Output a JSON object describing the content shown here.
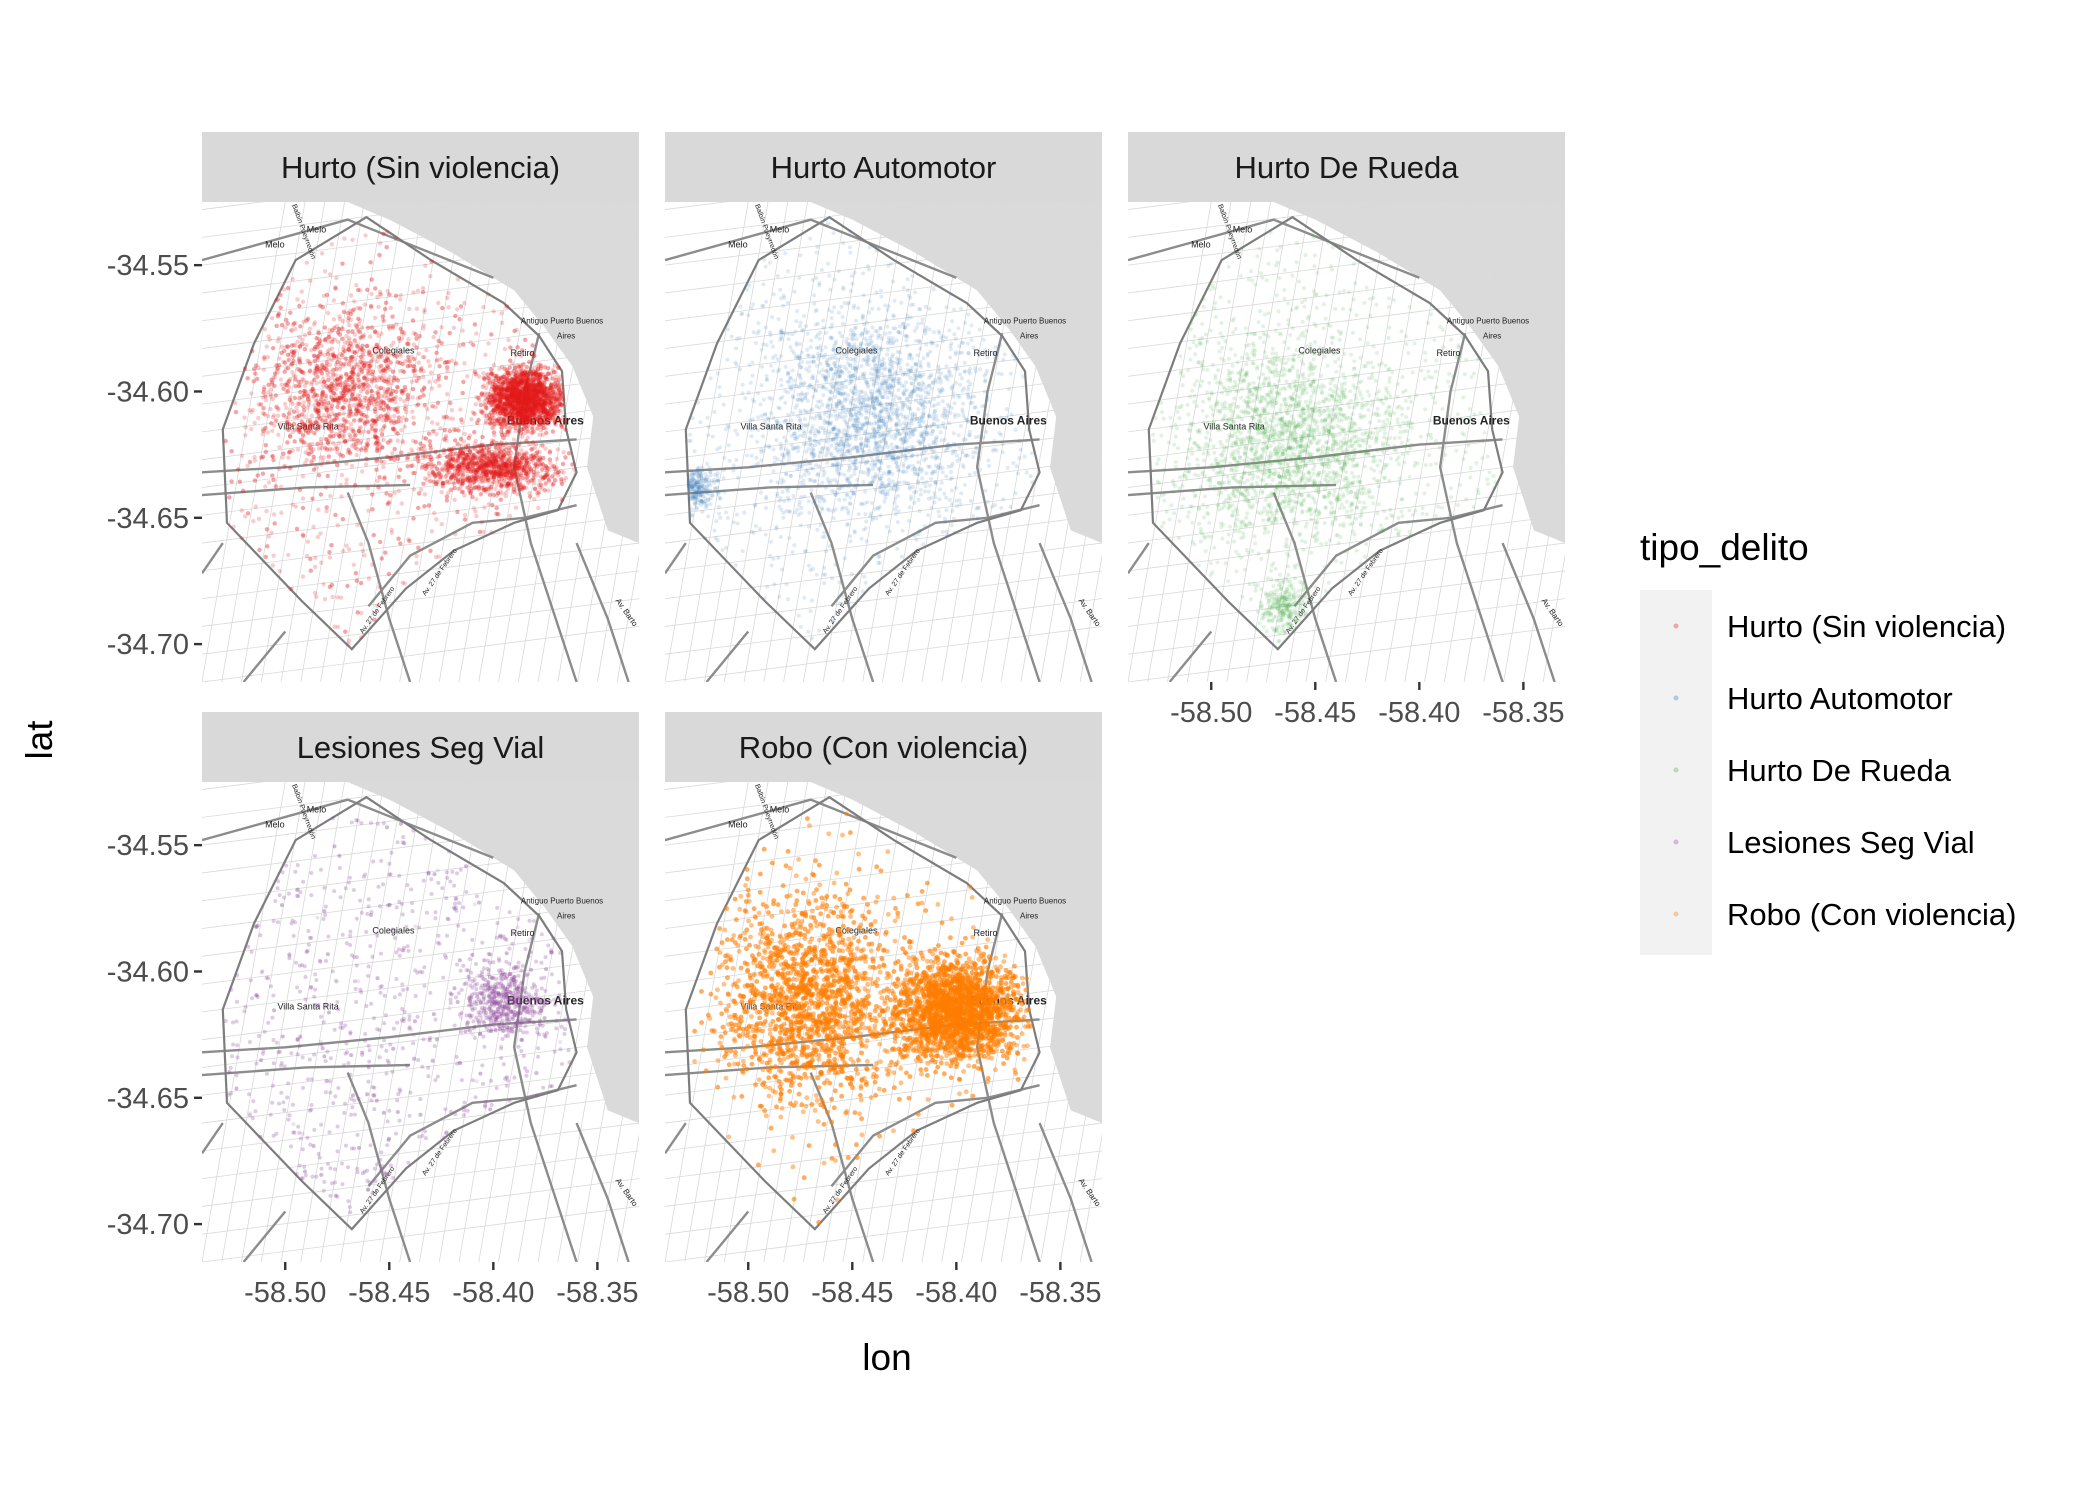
{
  "chart_data": {
    "type": "scatter",
    "layout": "facet_wrap",
    "xlabel": "lon",
    "ylabel": "lat",
    "xlim": [
      -58.54,
      -58.33
    ],
    "ylim": [
      -34.715,
      -34.525
    ],
    "x_ticks": [
      -58.5,
      -58.45,
      -58.4,
      -58.35
    ],
    "x_tick_labels": [
      "-58.50",
      "-58.45",
      "-58.40",
      "-58.35"
    ],
    "y_ticks": [
      -34.55,
      -34.6,
      -34.65,
      -34.7
    ],
    "y_tick_labels": [
      "-34.55",
      "-34.60",
      "-34.65",
      "-34.70"
    ],
    "legend": {
      "title": "tipo_delito",
      "placement": "right",
      "entries": [
        {
          "label": "Hurto (Sin violencia)",
          "color": "#E41A1C"
        },
        {
          "label": "Hurto Automotor",
          "color": "#377EB8"
        },
        {
          "label": "Hurto De Rueda",
          "color": "#4DAF4A"
        },
        {
          "label": "Lesiones Seg Vial",
          "color": "#984EA3"
        },
        {
          "label": "Robo (Con violencia)",
          "color": "#FF7F00"
        }
      ]
    },
    "panels": [
      {
        "title": "Hurto (Sin violencia)",
        "color": "#E41A1C",
        "density": "very high"
      },
      {
        "title": "Hurto Automotor",
        "color": "#377EB8",
        "density": "medium"
      },
      {
        "title": "Hurto De Rueda",
        "color": "#4DAF4A",
        "density": "medium"
      },
      {
        "title": "Lesiones Seg Vial",
        "color": "#984EA3",
        "density": "medium, along roads"
      },
      {
        "title": "Robo (Con violencia)",
        "color": "#FF7F00",
        "density": "saturated"
      }
    ],
    "basemap_labels": [
      "Melo",
      "Colegiales",
      "Retiro",
      "Villa Santa Rita",
      "Buenos Aires",
      "Av. 27 de Febrero",
      "Av. Bartolomé",
      "Antiguo Puerto Buenos Aires",
      "Pasco"
    ]
  }
}
